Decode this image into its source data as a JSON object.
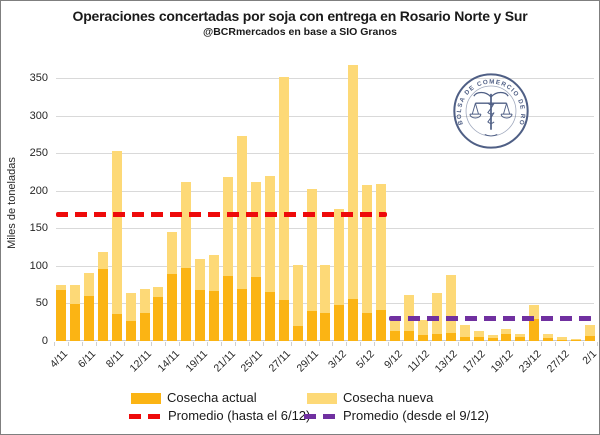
{
  "chart_data": {
    "type": "bar",
    "stacked": true,
    "title": "Operaciones concertadas por soja con entrega en Rosario Norte y Sur",
    "subtitle": "@BCRmercados en base a SIO Granos",
    "ylabel": "Miles de toneladas",
    "xlabel": "",
    "ylim": [
      0,
      350
    ],
    "yticks": [
      0,
      50,
      100,
      150,
      200,
      250,
      300,
      350
    ],
    "grid": "horizontal",
    "legend_position": "bottom",
    "n_bars": 39,
    "x_tick_labels": [
      "4/11",
      "6/11",
      "8/11",
      "12/11",
      "14/11",
      "19/11",
      "21/11",
      "25/11",
      "27/11",
      "29/11",
      "3/12",
      "5/12",
      "9/12",
      "11/12",
      "13/12",
      "17/12",
      "19/12",
      "23/12",
      "27/12",
      "2/1"
    ],
    "x_labels_every_other_bar_starting_first": true,
    "series": [
      {
        "name": "Cosecha actual",
        "color": "#FBB414",
        "values": [
          68,
          50,
          60,
          96,
          36,
          27,
          38,
          59,
          90,
          98,
          68,
          67,
          87,
          69,
          85,
          65,
          55,
          20,
          40,
          38,
          48,
          56,
          38,
          41,
          13,
          13,
          8,
          10,
          11,
          6,
          5,
          4,
          9,
          5,
          29,
          4,
          2,
          1,
          7
        ]
      },
      {
        "name": "Cosecha nueva",
        "color": "#FDD977",
        "values": [
          7,
          25,
          31,
          23,
          218,
          37,
          31,
          13,
          55,
          114,
          41,
          48,
          132,
          204,
          127,
          155,
          297,
          82,
          163,
          63,
          128,
          312,
          170,
          169,
          17,
          48,
          20,
          54,
          77,
          16,
          9,
          4,
          7,
          5,
          19,
          5,
          3,
          2,
          15
        ]
      }
    ],
    "lines": [
      {
        "name": "Promedio (hasta el 6/12)",
        "color": "#EE0A0A",
        "style": "dashed",
        "value": 169,
        "span_bars": [
          1,
          24
        ]
      },
      {
        "name": "Promedio (desde el 9/12)",
        "color": "#7030A0",
        "style": "dashed",
        "value": 30,
        "span_bars": [
          25,
          39
        ]
      }
    ]
  },
  "logo": {
    "text": "BOLSA DE COMERCIO DE ROSARIO",
    "color": "#3D4E78"
  }
}
